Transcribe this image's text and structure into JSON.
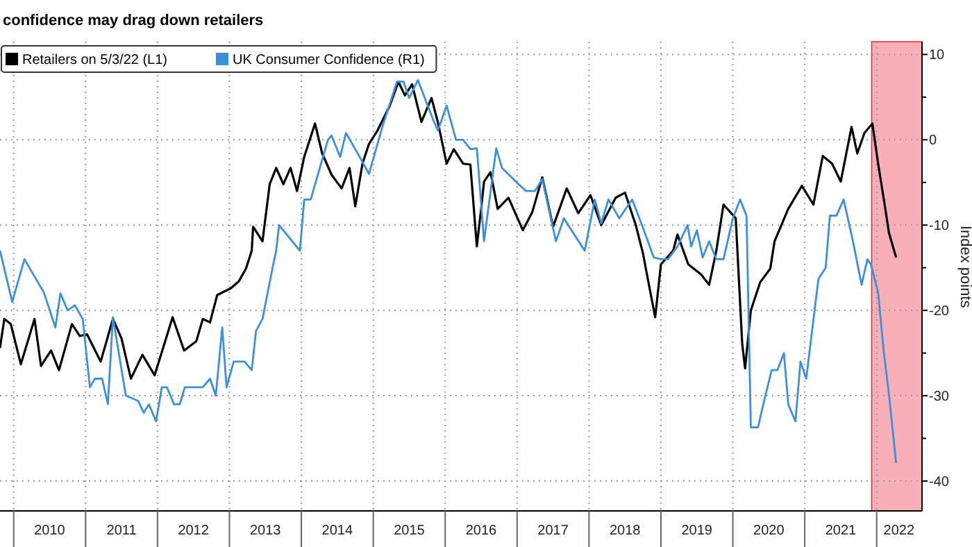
{
  "chart_data": {
    "type": "line",
    "title": "confidence may drag down retailers",
    "y2label": "Index points",
    "legend": "top left",
    "grid": true,
    "xlim": [
      2009.81,
      2022.63
    ],
    "ylim": [
      -43.5,
      11.5
    ],
    "xticks": [
      {
        "value": 2010,
        "label": null
      },
      {
        "value": 2010.5,
        "label": "2010"
      },
      {
        "value": 2011,
        "label": null
      },
      {
        "value": 2011.5,
        "label": "2011"
      },
      {
        "value": 2012,
        "label": null
      },
      {
        "value": 2012.5,
        "label": "2012"
      },
      {
        "value": 2013,
        "label": null
      },
      {
        "value": 2013.5,
        "label": "2013"
      },
      {
        "value": 2014,
        "label": null
      },
      {
        "value": 2014.5,
        "label": "2014"
      },
      {
        "value": 2015,
        "label": null
      },
      {
        "value": 2015.5,
        "label": "2015"
      },
      {
        "value": 2016,
        "label": null
      },
      {
        "value": 2016.5,
        "label": "2016"
      },
      {
        "value": 2017,
        "label": null
      },
      {
        "value": 2017.5,
        "label": "2017"
      },
      {
        "value": 2018,
        "label": null
      },
      {
        "value": 2018.5,
        "label": "2018"
      },
      {
        "value": 2019,
        "label": null
      },
      {
        "value": 2019.5,
        "label": "2019"
      },
      {
        "value": 2020,
        "label": null
      },
      {
        "value": 2020.5,
        "label": "2020"
      },
      {
        "value": 2021,
        "label": null
      },
      {
        "value": 2021.5,
        "label": "2021"
      },
      {
        "value": 2022,
        "label": null
      },
      {
        "value": 2022.31,
        "label": "2022"
      }
    ],
    "yticks": [
      10,
      {
        "value": 5,
        "label": null
      },
      0,
      {
        "value": -5,
        "label": null
      },
      -10,
      {
        "value": -15,
        "label": null
      },
      -20,
      {
        "value": -25,
        "label": null
      },
      -30,
      {
        "value": -35,
        "label": null
      },
      -40
    ],
    "bands": [
      {
        "axis": "x",
        "from": 2021.93,
        "to": 2022.63,
        "color": "#f7a1ab"
      }
    ],
    "series": [
      {
        "name": "Retailers  on 5/3/22 (L1)",
        "color": "#000000",
        "x": [
          2009.81,
          2009.87,
          2009.96,
          2010.1,
          2010.29,
          2010.38,
          2010.52,
          2010.63,
          2010.81,
          2010.92,
          2011.02,
          2011.21,
          2011.38,
          2011.5,
          2011.63,
          2011.79,
          2011.96,
          2012.21,
          2012.37,
          2012.54,
          2012.63,
          2012.73,
          2012.83,
          2013.02,
          2013.13,
          2013.23,
          2013.31,
          2013.33,
          2013.46,
          2013.56,
          2013.65,
          2013.75,
          2013.85,
          2013.94,
          2014.04,
          2014.19,
          2014.29,
          2014.42,
          2014.56,
          2014.67,
          2014.75,
          2014.85,
          2014.94,
          2015.06,
          2015.23,
          2015.35,
          2015.44,
          2015.54,
          2015.67,
          2015.81,
          2015.9,
          2016.02,
          2016.12,
          2016.25,
          2016.35,
          2016.44,
          2016.5,
          2016.54,
          2016.63,
          2016.73,
          2016.88,
          2017.08,
          2017.21,
          2017.35,
          2017.5,
          2017.69,
          2017.85,
          2018.02,
          2018.17,
          2018.37,
          2018.5,
          2018.65,
          2018.75,
          2018.79,
          2018.92,
          2019.0,
          2019.17,
          2019.23,
          2019.38,
          2019.56,
          2019.67,
          2019.77,
          2019.87,
          2020.04,
          2020.13,
          2020.17,
          2020.25,
          2020.38,
          2020.52,
          2020.58,
          2020.77,
          2020.96,
          2021.12,
          2021.25,
          2021.38,
          2021.5,
          2021.65,
          2021.73,
          2021.83,
          2021.94,
          2022.02,
          2022.12,
          2022.17,
          2022.27
        ],
        "values": [
          -24.4,
          -21,
          -21.6,
          -26.3,
          -21,
          -26.5,
          -24.7,
          -27,
          -21.6,
          -23,
          -22.8,
          -26,
          -21,
          -23.3,
          -28,
          -25.2,
          -27.6,
          -20.8,
          -24.7,
          -23.6,
          -21,
          -21.4,
          -18.2,
          -17.4,
          -16.6,
          -15.1,
          -13,
          -10.2,
          -11.9,
          -5.2,
          -3.3,
          -5.2,
          -3.3,
          -6,
          -2,
          1.9,
          -1.6,
          -4.1,
          -5.7,
          -3.3,
          -7.8,
          -2.8,
          -0.5,
          1.1,
          4,
          6.8,
          5.2,
          6.5,
          2.1,
          4.9,
          2,
          -2.8,
          -1.1,
          -2.8,
          -2.9,
          -12.5,
          -8.1,
          -4.9,
          -3.8,
          -8.1,
          -6.8,
          -10.6,
          -8.5,
          -4.4,
          -10.2,
          -5.7,
          -8.6,
          -6.5,
          -10,
          -6.8,
          -6.2,
          -10,
          -13.3,
          -15.1,
          -20.8,
          -14.6,
          -13,
          -11.1,
          -14.6,
          -15.8,
          -17,
          -13,
          -7.6,
          -9.2,
          -23.9,
          -26.8,
          -20,
          -16.7,
          -15.1,
          -11.9,
          -8.1,
          -5.4,
          -7.6,
          -1.9,
          -2.8,
          -4.9,
          1.5,
          -1.6,
          0.8,
          1.9,
          -2.8,
          -8.1,
          -10.9,
          -13.8
        ]
      },
      {
        "name": "UK Consumer Confidence (R1)",
        "color": "#3d8fdc",
        "x": [
          2009.81,
          2009.98,
          2010.15,
          2010.42,
          2010.58,
          2010.65,
          2010.75,
          2010.85,
          2010.96,
          2011.06,
          2011.13,
          2011.23,
          2011.31,
          2011.38,
          2011.56,
          2011.73,
          2011.81,
          2011.88,
          2011.98,
          2012.06,
          2012.13,
          2012.23,
          2012.31,
          2012.38,
          2012.63,
          2012.73,
          2012.81,
          2012.9,
          2012.96,
          2013.06,
          2013.21,
          2013.31,
          2013.37,
          2013.46,
          2013.6,
          2013.65,
          2013.69,
          2013.98,
          2014.04,
          2014.13,
          2014.37,
          2014.42,
          2014.54,
          2014.62,
          2014.81,
          2014.94,
          2015.13,
          2015.33,
          2015.42,
          2015.5,
          2015.62,
          2015.83,
          2015.9,
          2016.02,
          2016.15,
          2016.25,
          2016.35,
          2016.44,
          2016.54,
          2016.71,
          2016.79,
          2017.02,
          2017.12,
          2017.25,
          2017.35,
          2017.54,
          2017.65,
          2017.94,
          2018.08,
          2018.17,
          2018.27,
          2018.42,
          2018.6,
          2018.75,
          2018.9,
          2019.0,
          2019.1,
          2019.23,
          2019.37,
          2019.42,
          2019.5,
          2019.58,
          2019.67,
          2019.77,
          2019.87,
          2020.0,
          2020.1,
          2020.19,
          2020.25,
          2020.35,
          2020.44,
          2020.54,
          2020.62,
          2020.71,
          2020.77,
          2020.87,
          2020.94,
          2021.02,
          2021.19,
          2021.29,
          2021.35,
          2021.44,
          2021.54,
          2021.67,
          2021.79,
          2021.87,
          2021.92,
          2022.02,
          2022.1,
          2022.17,
          2022.27
        ],
        "values": [
          -13,
          -19,
          -14,
          -17.9,
          -22,
          -18,
          -20,
          -19.4,
          -21,
          -29,
          -28,
          -28,
          -31,
          -20.8,
          -30,
          -30.6,
          -32,
          -31,
          -33,
          -29,
          -29,
          -31,
          -31,
          -29,
          -29,
          -28,
          -30,
          -22,
          -29,
          -26,
          -26,
          -27,
          -22.4,
          -21,
          -15,
          -13,
          -10,
          -13,
          -7,
          -7,
          0,
          0.5,
          -2,
          0.8,
          -2,
          -4,
          1.6,
          6.8,
          6.8,
          4.9,
          7,
          2.4,
          1.1,
          4,
          0,
          0,
          -1.1,
          -1,
          -11.9,
          -1,
          -3.3,
          -5.2,
          -6,
          -6,
          -4.6,
          -11.9,
          -9.2,
          -13,
          -7,
          -9.8,
          -7,
          -9.2,
          -7,
          -10.3,
          -13.8,
          -14,
          -14,
          -12.5,
          -10,
          -12.5,
          -10.6,
          -13.8,
          -11.9,
          -14,
          -14,
          -9.2,
          -7,
          -8.9,
          -33.7,
          -33.7,
          -30.4,
          -27,
          -27,
          -25,
          -31,
          -33,
          -26,
          -28,
          -16.3,
          -15,
          -8.9,
          -8.9,
          -7,
          -11.9,
          -17,
          -14,
          -14.6,
          -17.9,
          -25,
          -29.8,
          -37.9
        ]
      }
    ]
  }
}
